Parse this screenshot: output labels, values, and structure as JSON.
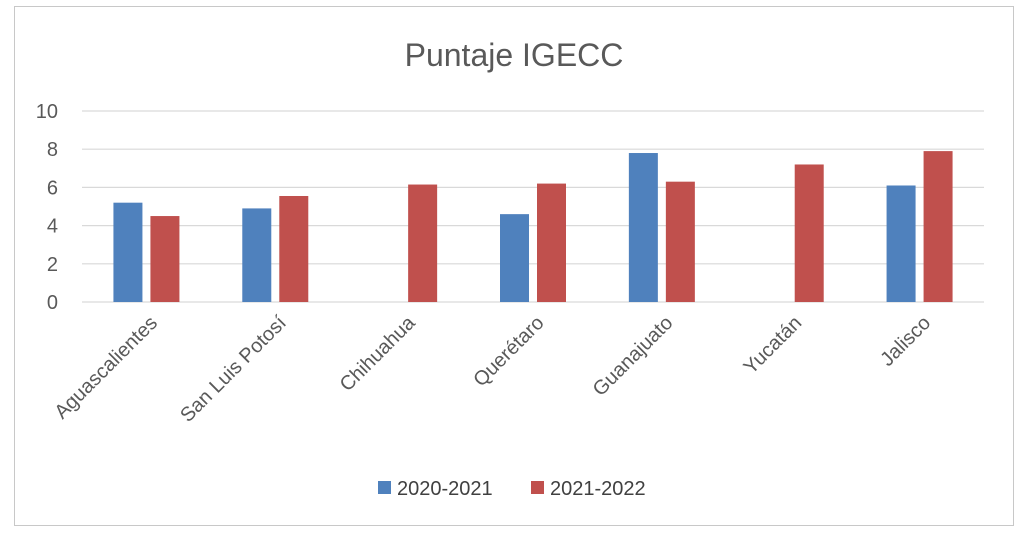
{
  "chart_data": {
    "type": "bar",
    "title": "Puntaje IGECC",
    "xlabel": "",
    "ylabel": "",
    "ylim": [
      0,
      10
    ],
    "yticks": [
      0,
      2,
      4,
      6,
      8,
      10
    ],
    "grid": true,
    "legend_position": "bottom",
    "categories": [
      "Aguascalientes",
      "San Luis Potosí",
      "Chihuahua",
      "Querétaro",
      "Guanajuato",
      "Yucatán",
      "Jalisco"
    ],
    "series": [
      {
        "name": "2020-2021",
        "color": "#4F81BD",
        "values": [
          5.2,
          4.9,
          null,
          4.6,
          7.8,
          null,
          6.1
        ]
      },
      {
        "name": "2021-2022",
        "color": "#C0504D",
        "values": [
          4.5,
          5.55,
          6.15,
          6.2,
          6.3,
          7.2,
          7.9
        ]
      }
    ]
  }
}
